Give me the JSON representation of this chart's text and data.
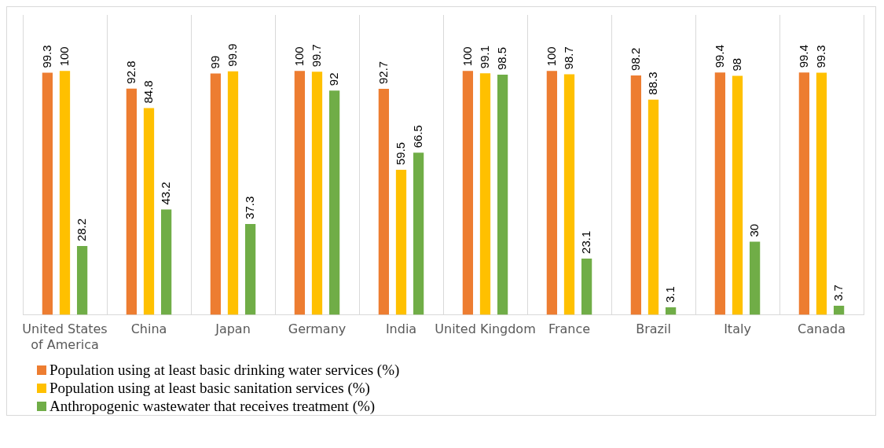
{
  "chart_data": {
    "type": "bar",
    "categories": [
      "United States of America",
      "China",
      "Japan",
      "Germany",
      "India",
      "United Kingdom",
      "France",
      "Brazil",
      "Italy",
      "Canada"
    ],
    "series": [
      {
        "name": "Population using at least basic drinking water services (%)",
        "color": "#ed7d31",
        "values": [
          99.3,
          92.8,
          99,
          100,
          92.7,
          100,
          100,
          98.2,
          99.4,
          99.4
        ]
      },
      {
        "name": "Population using at least basic sanitation services (%)",
        "color": "#ffc000",
        "values": [
          100,
          84.8,
          99.9,
          99.7,
          59.5,
          99.1,
          98.7,
          88.3,
          98,
          99.3
        ]
      },
      {
        "name": "Anthropogenic wastewater that receives treatment (%)",
        "color": "#70ad47",
        "values": [
          28.2,
          43.2,
          37.3,
          92,
          66.5,
          98.5,
          23.1,
          3.1,
          30,
          3.7
        ]
      }
    ],
    "ylim": [
      0,
      123
    ],
    "tick_labels": "x",
    "grid": "x",
    "legend": "bottom left",
    "data_labels": true
  }
}
